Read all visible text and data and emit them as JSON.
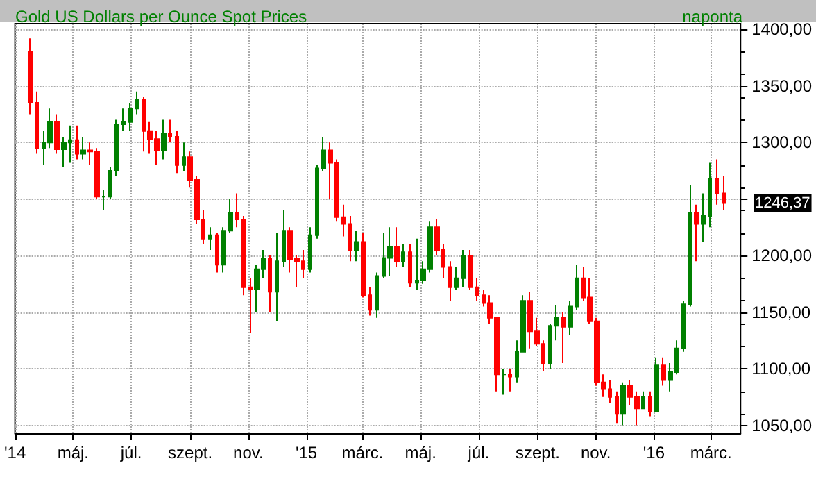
{
  "chart_data": {
    "type": "candlestick",
    "title": "Gold US Dollars per Ounce Spot Prices",
    "subtitle": "naponta",
    "x": [
      "2014-03-17",
      "2014-03-24",
      "2014-03-31",
      "2014-04-07",
      "2014-04-14",
      "2014-04-21",
      "2014-04-28",
      "2014-05-05",
      "2014-05-12",
      "2014-05-19",
      "2014-05-26",
      "2014-06-02",
      "2014-06-09",
      "2014-06-16",
      "2014-06-23",
      "2014-06-30",
      "2014-07-07",
      "2014-07-14",
      "2014-07-21",
      "2014-07-28",
      "2014-08-04",
      "2014-08-11",
      "2014-08-18",
      "2014-08-25",
      "2014-09-01",
      "2014-09-08",
      "2014-09-15",
      "2014-09-22",
      "2014-09-29",
      "2014-10-06",
      "2014-10-13",
      "2014-10-20",
      "2014-10-27",
      "2014-11-03",
      "2014-11-10",
      "2014-11-17",
      "2014-11-24",
      "2014-12-01",
      "2014-12-08",
      "2014-12-15",
      "2014-12-22",
      "2014-12-29",
      "2015-01-05",
      "2015-01-12",
      "2015-01-19",
      "2015-01-26",
      "2015-02-02",
      "2015-02-09",
      "2015-02-16",
      "2015-02-23",
      "2015-03-02",
      "2015-03-09",
      "2015-03-16",
      "2015-03-23",
      "2015-03-30",
      "2015-04-06",
      "2015-04-13",
      "2015-04-20",
      "2015-04-27",
      "2015-05-04",
      "2015-05-11",
      "2015-05-18",
      "2015-05-25",
      "2015-06-01",
      "2015-06-08",
      "2015-06-15",
      "2015-06-22",
      "2015-06-29",
      "2015-07-06",
      "2015-07-13",
      "2015-07-20",
      "2015-07-27",
      "2015-08-03",
      "2015-08-10",
      "2015-08-17",
      "2015-08-24",
      "2015-08-31",
      "2015-09-07",
      "2015-09-14",
      "2015-09-21",
      "2015-09-28",
      "2015-10-05",
      "2015-10-12",
      "2015-10-19",
      "2015-10-26",
      "2015-11-02",
      "2015-11-09",
      "2015-11-16",
      "2015-11-23",
      "2015-11-30",
      "2015-12-07",
      "2015-12-14",
      "2015-12-21",
      "2015-12-28",
      "2016-01-04",
      "2016-01-11",
      "2016-01-18",
      "2016-01-25",
      "2016-02-01",
      "2016-02-08",
      "2016-02-15",
      "2016-02-22",
      "2016-02-29",
      "2016-03-07",
      "2016-03-14"
    ],
    "ohlc": [
      [
        1380,
        1392,
        1325,
        1335
      ],
      [
        1335,
        1345,
        1290,
        1295
      ],
      [
        1295,
        1310,
        1280,
        1300
      ],
      [
        1300,
        1330,
        1295,
        1318
      ],
      [
        1318,
        1325,
        1290,
        1294
      ],
      [
        1294,
        1305,
        1278,
        1300
      ],
      [
        1300,
        1315,
        1282,
        1302
      ],
      [
        1302,
        1315,
        1285,
        1290
      ],
      [
        1290,
        1305,
        1285,
        1293
      ],
      [
        1293,
        1300,
        1280,
        1292
      ],
      [
        1292,
        1295,
        1250,
        1252
      ],
      [
        1252,
        1258,
        1240,
        1252
      ],
      [
        1252,
        1278,
        1250,
        1275
      ],
      [
        1275,
        1320,
        1270,
        1316
      ],
      [
        1316,
        1330,
        1310,
        1318
      ],
      [
        1318,
        1335,
        1310,
        1330
      ],
      [
        1330,
        1345,
        1325,
        1338
      ],
      [
        1338,
        1340,
        1292,
        1310
      ],
      [
        1310,
        1318,
        1290,
        1303
      ],
      [
        1303,
        1310,
        1280,
        1293
      ],
      [
        1293,
        1320,
        1285,
        1308
      ],
      [
        1308,
        1320,
        1300,
        1305
      ],
      [
        1305,
        1310,
        1273,
        1280
      ],
      [
        1280,
        1300,
        1275,
        1287
      ],
      [
        1287,
        1292,
        1260,
        1267
      ],
      [
        1267,
        1270,
        1228,
        1232
      ],
      [
        1232,
        1240,
        1210,
        1215
      ],
      [
        1215,
        1225,
        1205,
        1218
      ],
      [
        1218,
        1220,
        1185,
        1192
      ],
      [
        1192,
        1225,
        1185,
        1222
      ],
      [
        1222,
        1250,
        1220,
        1238
      ],
      [
        1238,
        1255,
        1225,
        1232
      ],
      [
        1232,
        1235,
        1165,
        1172
      ],
      [
        1172,
        1180,
        1132,
        1170
      ],
      [
        1170,
        1192,
        1150,
        1188
      ],
      [
        1188,
        1205,
        1180,
        1197
      ],
      [
        1197,
        1200,
        1150,
        1168
      ],
      [
        1168,
        1220,
        1142,
        1195
      ],
      [
        1195,
        1240,
        1190,
        1222
      ],
      [
        1222,
        1225,
        1185,
        1197
      ],
      [
        1197,
        1200,
        1172,
        1195
      ],
      [
        1195,
        1205,
        1180,
        1188
      ],
      [
        1188,
        1225,
        1185,
        1218
      ],
      [
        1218,
        1280,
        1215,
        1277
      ],
      [
        1277,
        1305,
        1275,
        1293
      ],
      [
        1293,
        1300,
        1250,
        1282
      ],
      [
        1282,
        1285,
        1230,
        1234
      ],
      [
        1234,
        1245,
        1217,
        1228
      ],
      [
        1228,
        1235,
        1195,
        1205
      ],
      [
        1205,
        1222,
        1195,
        1212
      ],
      [
        1212,
        1220,
        1163,
        1165
      ],
      [
        1165,
        1172,
        1147,
        1152
      ],
      [
        1152,
        1185,
        1145,
        1182
      ],
      [
        1182,
        1220,
        1180,
        1198
      ],
      [
        1198,
        1225,
        1182,
        1208
      ],
      [
        1208,
        1225,
        1190,
        1195
      ],
      [
        1195,
        1210,
        1190,
        1203
      ],
      [
        1203,
        1210,
        1172,
        1176
      ],
      [
        1176,
        1215,
        1170,
        1178
      ],
      [
        1178,
        1195,
        1175,
        1188
      ],
      [
        1188,
        1230,
        1185,
        1225
      ],
      [
        1225,
        1232,
        1200,
        1205
      ],
      [
        1205,
        1210,
        1180,
        1190
      ],
      [
        1190,
        1195,
        1160,
        1172
      ],
      [
        1172,
        1190,
        1170,
        1180
      ],
      [
        1180,
        1205,
        1172,
        1200
      ],
      [
        1200,
        1205,
        1170,
        1172
      ],
      [
        1172,
        1180,
        1160,
        1165
      ],
      [
        1165,
        1170,
        1155,
        1158
      ],
      [
        1158,
        1165,
        1140,
        1145
      ],
      [
        1145,
        1145,
        1080,
        1095
      ],
      [
        1095,
        1100,
        1077,
        1095
      ],
      [
        1095,
        1100,
        1080,
        1093
      ],
      [
        1093,
        1125,
        1088,
        1115
      ],
      [
        1115,
        1165,
        1115,
        1160
      ],
      [
        1160,
        1168,
        1118,
        1133
      ],
      [
        1133,
        1145,
        1120,
        1122
      ],
      [
        1122,
        1125,
        1098,
        1105
      ],
      [
        1105,
        1140,
        1100,
        1138
      ],
      [
        1138,
        1156,
        1125,
        1145
      ],
      [
        1145,
        1150,
        1105,
        1137
      ],
      [
        1137,
        1160,
        1130,
        1155
      ],
      [
        1155,
        1192,
        1152,
        1180
      ],
      [
        1180,
        1190,
        1160,
        1163
      ],
      [
        1163,
        1180,
        1140,
        1142
      ],
      [
        1142,
        1145,
        1085,
        1088
      ],
      [
        1088,
        1095,
        1075,
        1082
      ],
      [
        1082,
        1090,
        1070,
        1075
      ],
      [
        1075,
        1080,
        1052,
        1060
      ],
      [
        1060,
        1088,
        1050,
        1085
      ],
      [
        1085,
        1090,
        1068,
        1075
      ],
      [
        1075,
        1080,
        1050,
        1065
      ],
      [
        1065,
        1080,
        1065,
        1075
      ],
      [
        1075,
        1080,
        1058,
        1062
      ],
      [
        1062,
        1110,
        1062,
        1103
      ],
      [
        1103,
        1110,
        1085,
        1090
      ],
      [
        1090,
        1105,
        1080,
        1097
      ],
      [
        1097,
        1125,
        1095,
        1118
      ],
      [
        1118,
        1160,
        1115,
        1157
      ],
      [
        1157,
        1262,
        1155,
        1238
      ],
      [
        1238,
        1245,
        1195,
        1228
      ],
      [
        1228,
        1255,
        1212,
        1235
      ],
      [
        1235,
        1282,
        1225,
        1268
      ],
      [
        1268,
        1285,
        1245,
        1255
      ],
      [
        1255,
        1270,
        1240,
        1246.37
      ]
    ],
    "xlim": [
      "2014-03-01",
      "2016-04-01"
    ],
    "xticks": [
      {
        "value": "2014-03-01",
        "label": "'14"
      },
      {
        "value": "2014-05-01",
        "label": "máj."
      },
      {
        "value": "2014-07-01",
        "label": "júl."
      },
      {
        "value": "2014-09-01",
        "label": "szept."
      },
      {
        "value": "2014-11-01",
        "label": "nov."
      },
      {
        "value": "2015-01-01",
        "label": "'15"
      },
      {
        "value": "2015-03-01",
        "label": "márc."
      },
      {
        "value": "2015-05-01",
        "label": "máj."
      },
      {
        "value": "2015-07-01",
        "label": "júl."
      },
      {
        "value": "2015-09-01",
        "label": "szept."
      },
      {
        "value": "2015-11-01",
        "label": "nov."
      },
      {
        "value": "2016-01-01",
        "label": "'16"
      },
      {
        "value": "2016-03-01",
        "label": "márc."
      }
    ],
    "ylim": [
      1043,
      1405
    ],
    "yticks": [
      {
        "value": 1050,
        "label": "1050,00"
      },
      {
        "value": 1100,
        "label": "1100,00"
      },
      {
        "value": 1150,
        "label": "1150,00"
      },
      {
        "value": 1200,
        "label": "1200,00"
      },
      {
        "value": 1250,
        "label": null
      },
      {
        "value": 1300,
        "label": "1300,00"
      },
      {
        "value": 1350,
        "label": "1350,00"
      },
      {
        "value": 1400,
        "label": "1400,00"
      }
    ],
    "annotations": [
      {
        "text": "1246,37",
        "x": "2016-03-14",
        "y": 1246.37
      }
    ],
    "grid": true
  }
}
